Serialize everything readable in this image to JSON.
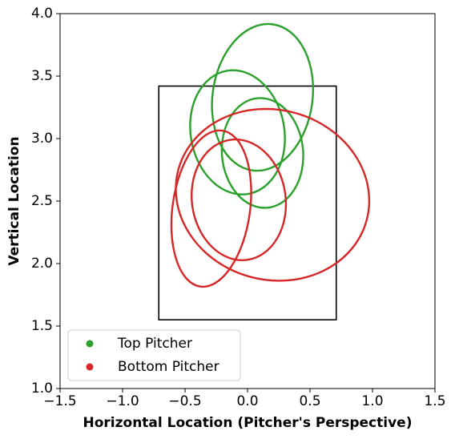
{
  "chart_data": {
    "type": "ellipse",
    "xlabel": "Horizontal Location (Pitcher's Perspective)",
    "ylabel": "Vertical Location",
    "xlim": [
      -1.5,
      1.5
    ],
    "ylim": [
      1.0,
      4.0
    ],
    "xticks": [
      {
        "value": -1.5,
        "label": "−1.5"
      },
      {
        "value": -1.0,
        "label": "−1.0"
      },
      {
        "value": -0.5,
        "label": "−0.5"
      },
      {
        "value": 0,
        "label": "0.0"
      },
      {
        "value": 0.5,
        "label": "0.5"
      },
      {
        "value": 1.0,
        "label": "1.0"
      },
      {
        "value": 1.5,
        "label": "1.5"
      }
    ],
    "yticks": [
      {
        "value": 1.0,
        "label": "1.0"
      },
      1.5,
      {
        "value": 2.0,
        "label": "2.0"
      },
      2.5,
      {
        "value": 3.0,
        "label": "3.0"
      },
      3.5,
      {
        "value": 4.0,
        "label": "4.0"
      }
    ],
    "strike_zone": {
      "x": [
        -0.71,
        0.71
      ],
      "y": [
        1.55,
        3.42
      ]
    },
    "legend": "lower left",
    "series": [
      {
        "name": "Top Pitcher",
        "color": "#2ca02c",
        "values": [
          {
            "x": 0.12,
            "y": 3.33,
            "width": 0.8,
            "height": 1.18,
            "angle": -8
          },
          {
            "x": -0.08,
            "y": 3.05,
            "width": 0.75,
            "height": 1.0,
            "angle": 10
          },
          {
            "x": 0.12,
            "y": 2.885,
            "width": 0.65,
            "height": 0.88,
            "angle": 5
          }
        ]
      },
      {
        "name": "Bottom Pitcher",
        "color": "#d62728",
        "values": [
          {
            "x": 0.2,
            "y": 2.55,
            "width": 1.56,
            "height": 1.36,
            "angle": -15
          },
          {
            "x": -0.29,
            "y": 2.44,
            "width": 0.62,
            "height": 1.26,
            "angle": -8
          },
          {
            "x": -0.07,
            "y": 2.51,
            "width": 0.75,
            "height": 0.97,
            "angle": 8
          }
        ]
      }
    ]
  }
}
